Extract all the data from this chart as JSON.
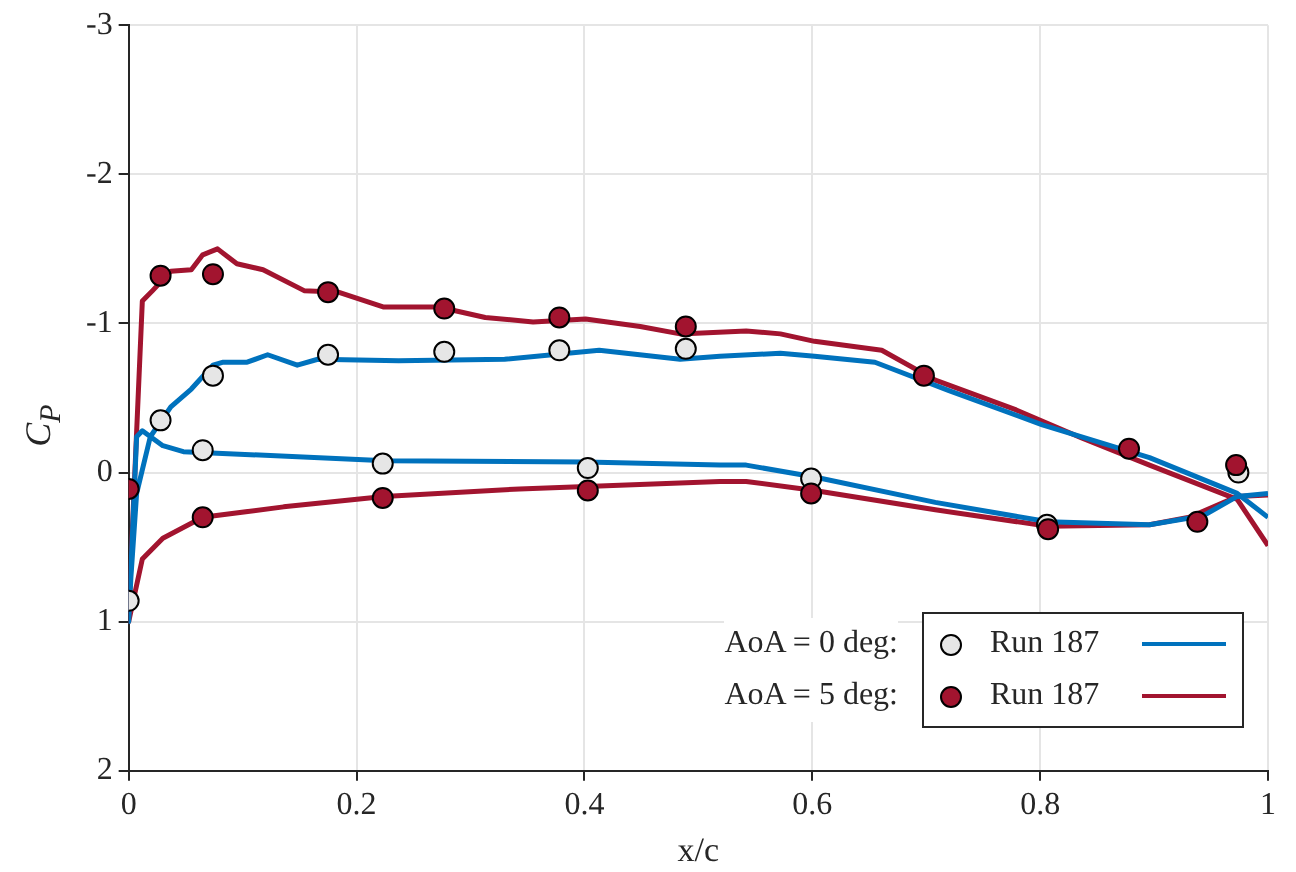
{
  "chart_data": {
    "type": "scatter",
    "xlabel": "x/c",
    "ylabel": "C$_{P}$",
    "xlim": [
      0,
      1
    ],
    "xticks": [
      0,
      0.2,
      0.4,
      0.6,
      0.8,
      1
    ],
    "ylim": [
      2,
      -3
    ],
    "yticks": [
      -3,
      -2,
      -1,
      0,
      1,
      2
    ],
    "grid": true,
    "legend": "bottom right",
    "annotations": [
      "AoA = 0 deg:",
      "AoA = 5 deg:"
    ],
    "series": [
      {
        "name": "Run 187",
        "marker": "circle",
        "color": "#e6e6e6",
        "x": [
          0,
          0.028,
          0.065,
          0.074,
          0.175,
          0.223,
          0.277,
          0.378,
          0.403,
          0.489,
          0.599,
          0.698,
          0.806,
          0.878,
          0.938,
          0.974
        ],
        "values": [
          0.86,
          -0.35,
          -0.15,
          -0.65,
          -0.79,
          -0.06,
          -0.81,
          -0.82,
          -0.03,
          -0.83,
          0.04,
          null,
          0.35,
          null,
          null,
          0.0
        ]
      },
      {
        "type": "line",
        "color": "#0072bd",
        "x": [
          1.0,
          0.973,
          0.896,
          0.802,
          0.72,
          0.655,
          0.602,
          0.572,
          0.519,
          0.484,
          0.413,
          0.33,
          0.237,
          0.166,
          0.148,
          0.122,
          0.104,
          0.083,
          0.074,
          0.055,
          0.037,
          0.019,
          0.007,
          0.002,
          0,
          0.007,
          0.012,
          0.03,
          0.048,
          0.107,
          0.225,
          0.401,
          0.519,
          0.542,
          0.602,
          0.708,
          0.807,
          0.896,
          0.943,
          0.973,
          1.0
        ],
        "values": [
          0.3,
          0.14,
          -0.1,
          -0.32,
          -0.55,
          -0.74,
          -0.78,
          -0.8,
          -0.78,
          -0.76,
          -0.82,
          -0.76,
          -0.75,
          -0.76,
          -0.72,
          -0.79,
          -0.74,
          -0.74,
          -0.72,
          -0.56,
          -0.44,
          -0.24,
          0.14,
          0.7,
          1.0,
          -0.24,
          -0.28,
          -0.18,
          -0.14,
          -0.12,
          -0.08,
          -0.07,
          -0.05,
          -0.05,
          0.03,
          0.2,
          0.33,
          0.35,
          0.29,
          0.16,
          0.14
        ]
      },
      {
        "name": "Run 187",
        "marker": "circle",
        "color": "#a2142f",
        "x": [
          0,
          0.028,
          0.065,
          0.074,
          0.175,
          0.223,
          0.277,
          0.378,
          0.403,
          0.489,
          0.599,
          0.698,
          0.807,
          0.878,
          0.938,
          0.972
        ],
        "values": [
          0.11,
          -1.32,
          0.3,
          -1.33,
          -1.21,
          0.17,
          -1.1,
          -1.04,
          0.12,
          -0.98,
          0.14,
          -0.65,
          0.38,
          -0.16,
          0.33,
          -0.05
        ]
      },
      {
        "type": "line",
        "color": "#a2142f",
        "x": [
          1.0,
          0.973,
          0.896,
          0.837,
          0.779,
          0.708,
          0.661,
          0.602,
          0.572,
          0.542,
          0.484,
          0.449,
          0.401,
          0.355,
          0.313,
          0.272,
          0.224,
          0.184,
          0.154,
          0.118,
          0.095,
          0.078,
          0.065,
          0.055,
          0.037,
          0.021,
          0.012,
          0.002,
          0,
          0.012,
          0.03,
          0.065,
          0.136,
          0.224,
          0.343,
          0.519,
          0.542,
          0.602,
          0.708,
          0.807,
          0.896,
          0.931,
          0.973,
          1.0
        ],
        "values": [
          0.49,
          0.18,
          -0.05,
          -0.23,
          -0.42,
          -0.62,
          -0.82,
          -0.88,
          -0.93,
          -0.95,
          -0.93,
          -0.98,
          -1.03,
          -1.01,
          -1.04,
          -1.11,
          -1.11,
          -1.21,
          -1.22,
          -1.36,
          -1.4,
          -1.5,
          -1.46,
          -1.36,
          -1.35,
          -1.22,
          -1.15,
          0.6,
          1.0,
          0.58,
          0.44,
          0.3,
          0.23,
          0.16,
          0.11,
          0.06,
          0.06,
          0.12,
          0.25,
          0.36,
          0.35,
          0.3,
          0.16,
          0.15
        ]
      }
    ]
  }
}
